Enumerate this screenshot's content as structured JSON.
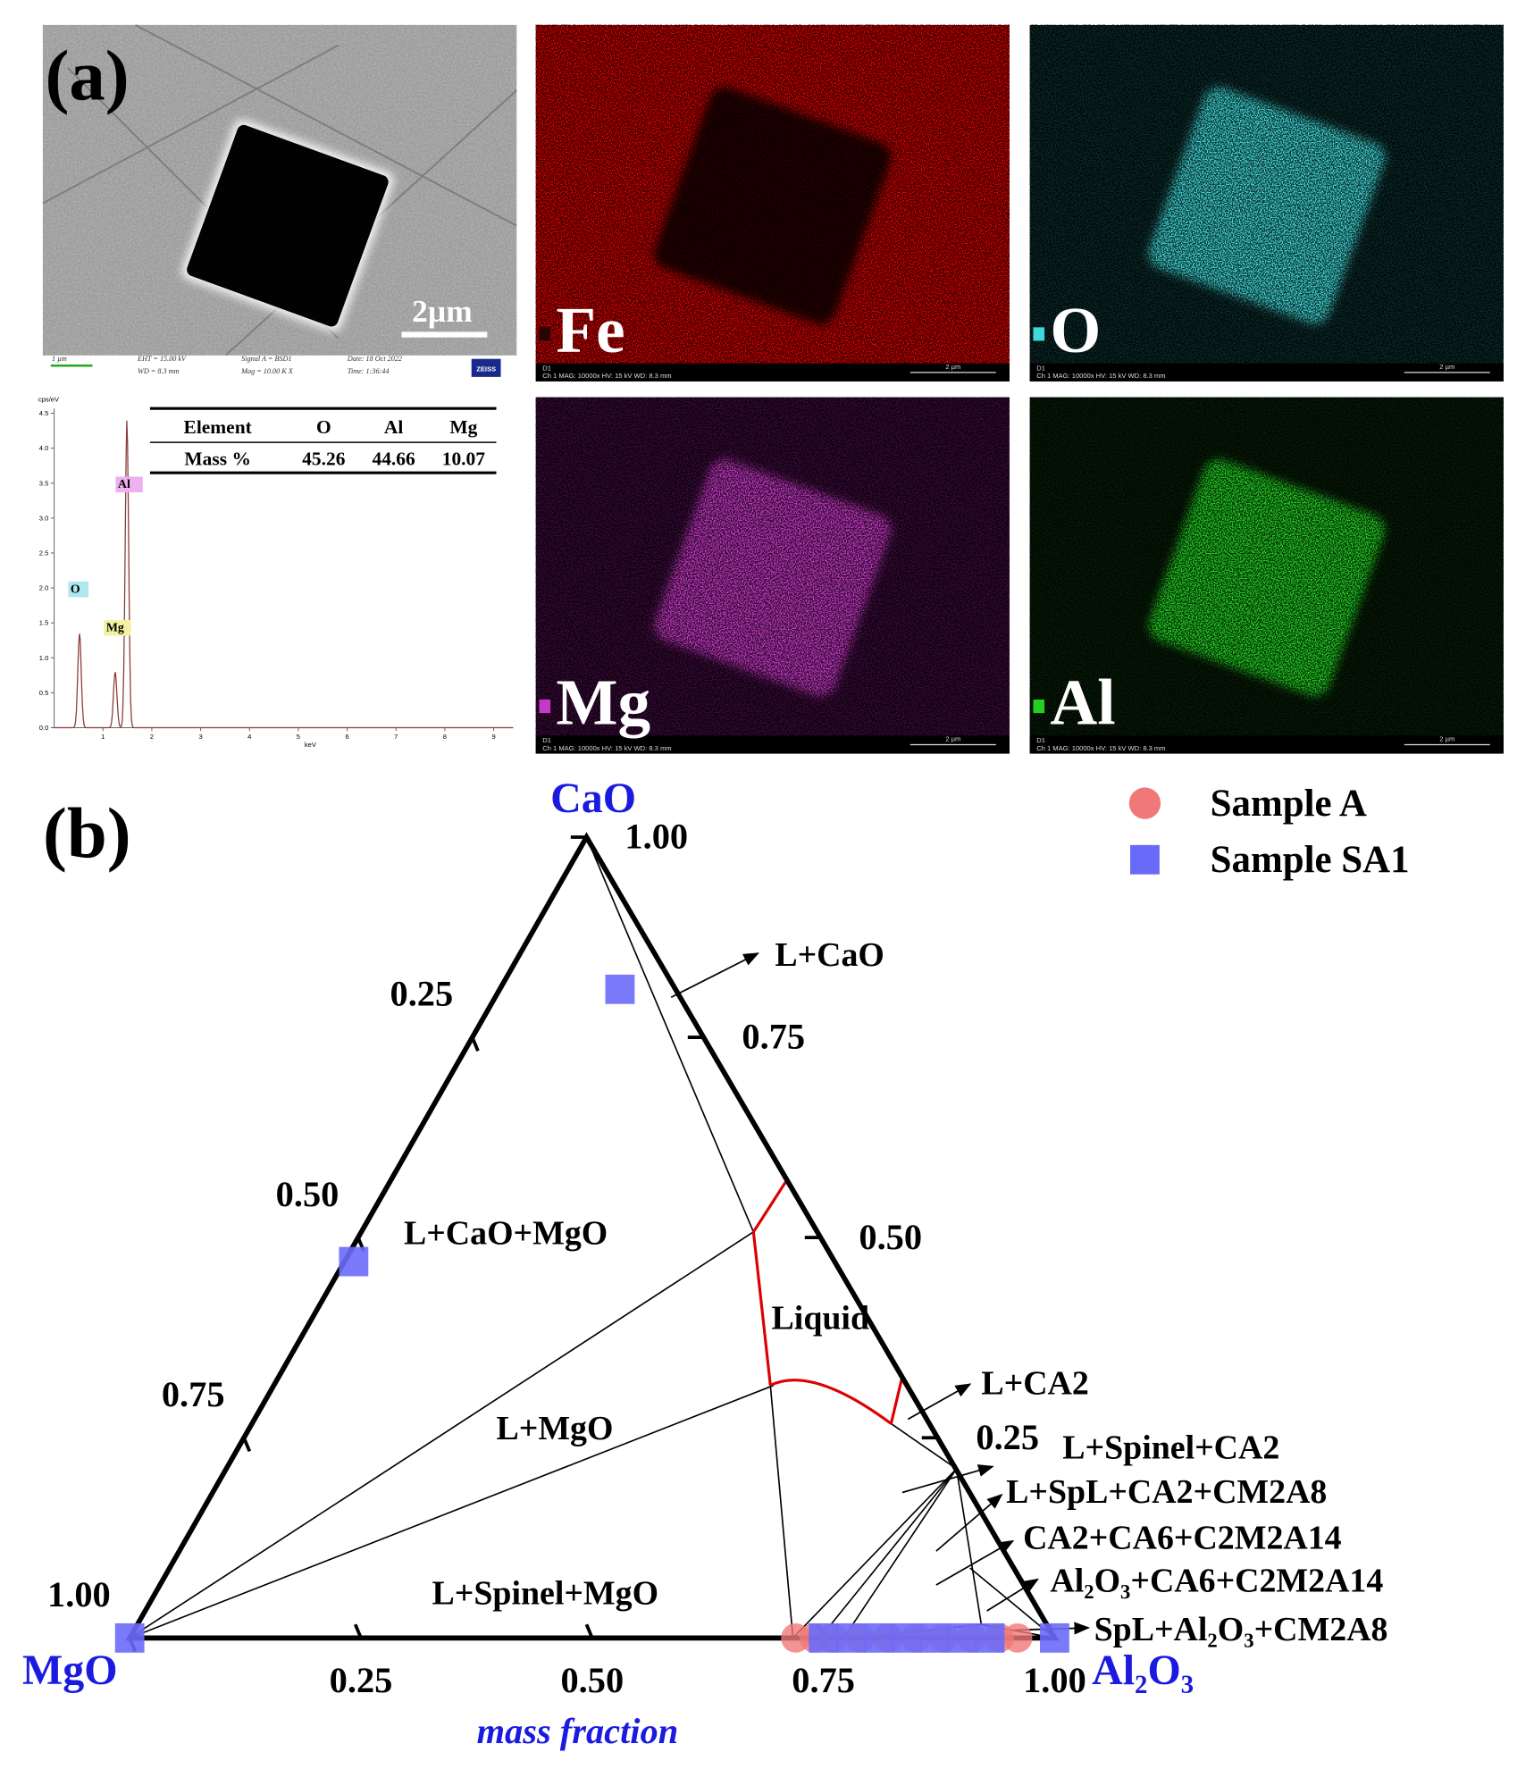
{
  "panel_a": {
    "label": "(a)",
    "sem": {
      "scale_bar": "2µm",
      "footer": [
        "1 µm",
        "EHT = 15.00 kV",
        "WD = 8.3 mm",
        "Signal A = BSD1",
        "Mag = 10.00 K X",
        "Date: 18 Oct 2022",
        "Time: 1:36:44",
        "ZEISS"
      ]
    },
    "maps": [
      {
        "element": "Fe",
        "color": "#d40000",
        "particle_color": "#2a0404"
      },
      {
        "element": "O",
        "color": "#0b2a2a",
        "particle_color": "#3fd8d8"
      },
      {
        "element": "Mg",
        "color": "#3a0a3a",
        "particle_color": "#c838c8"
      },
      {
        "element": "Al",
        "color": "#071c07",
        "particle_color": "#22d022"
      }
    ],
    "map_footer": {
      "detector": "D1",
      "info": "Ch 1   MAG: 10000x   HV: 15 kV   WD: 8.3 mm",
      "scale": "2 µm"
    },
    "eds": {
      "y_label": "cps/eV",
      "x_label": "keV",
      "xlim": [
        0,
        9.4
      ],
      "ylim": [
        0,
        4.6
      ],
      "yticks": [
        {
          "value": 0,
          "label": "0.0"
        },
        {
          "value": 0.5,
          "label": "0.5"
        },
        {
          "value": 1,
          "label": "1.0"
        },
        {
          "value": 1.5,
          "label": "1.5"
        },
        {
          "value": 2,
          "label": "2.0"
        },
        {
          "value": 2.5,
          "label": "2.5"
        },
        {
          "value": 3,
          "label": "3.0"
        },
        {
          "value": 3.5,
          "label": "3.5"
        },
        {
          "value": 4,
          "label": "4.0"
        },
        {
          "value": 4.5,
          "label": "4.5"
        }
      ],
      "xticks": [
        1,
        2,
        3,
        4,
        5,
        6,
        7,
        8,
        9
      ],
      "peaks": [
        {
          "name": "O",
          "energy": 0.52,
          "height": 1.35
        },
        {
          "name": "Mg",
          "energy": 1.25,
          "height": 0.8
        },
        {
          "name": "Al",
          "energy": 1.49,
          "height": 4.4
        }
      ],
      "table": {
        "header": [
          "Element",
          "O",
          "Al",
          "Mg"
        ],
        "row": [
          "Mass %",
          "45.26",
          "44.66",
          "10.07"
        ]
      }
    }
  },
  "chart_data": {
    "type": "ternary",
    "label": "(b)",
    "axis_label": "mass fraction",
    "vertices": {
      "top": "CaO",
      "left": "MgO",
      "right": "Al₂O₃"
    },
    "left_ticks": [
      {
        "value": 0.25,
        "label": "0.25"
      },
      {
        "value": 0.5,
        "label": "0.50"
      },
      {
        "value": 0.75,
        "label": "0.75"
      },
      {
        "value": 1,
        "label": "1.00"
      }
    ],
    "bottom_ticks": [
      {
        "value": 0.25,
        "label": "0.25"
      },
      {
        "value": 0.5,
        "label": "0.50"
      },
      {
        "value": 0.75,
        "label": "0.75"
      },
      {
        "value": 1,
        "label": "1.00"
      }
    ],
    "right_ticks": [
      {
        "value": 1,
        "label": "1.00"
      },
      {
        "value": 0.75,
        "label": "0.75"
      },
      {
        "value": 0.5,
        "label": "0.50"
      },
      {
        "value": 0.25,
        "label": "0.25"
      }
    ],
    "legend": "top-right",
    "series": [
      {
        "name": "Sample   A",
        "color": "#f07878",
        "marker": "circle",
        "CaO": [
          0,
          0,
          0,
          0,
          0,
          0,
          0,
          0,
          0,
          0
        ],
        "Al2O3": [
          0.72,
          0.74,
          0.76,
          0.79,
          0.82,
          0.85,
          0.88,
          0.91,
          0.94,
          0.96
        ]
      },
      {
        "name": "Sample SA1",
        "color": "#6a6af8",
        "marker": "square",
        "CaO": [
          0.81,
          0.47,
          0,
          0,
          0,
          0,
          0,
          0,
          0,
          0,
          0
        ],
        "Al2O3": [
          0.13,
          0.01,
          0,
          1,
          0.75,
          0.78,
          0.81,
          0.84,
          0.87,
          0.9,
          0.93
        ]
      }
    ],
    "regions": [
      "L+CaO",
      "L+CaO+MgO",
      "Liquid",
      "L+MgO",
      "L+Spinel+MgO",
      "L+CA2",
      "L+Spinel+CA2",
      "L+SpL+CA2+CM2A8",
      "CA2+CA6+C2M2A14",
      "Al₂O₃+CA6+C2M2A14",
      "SpL+Al₂O₃+CM2A8"
    ]
  }
}
